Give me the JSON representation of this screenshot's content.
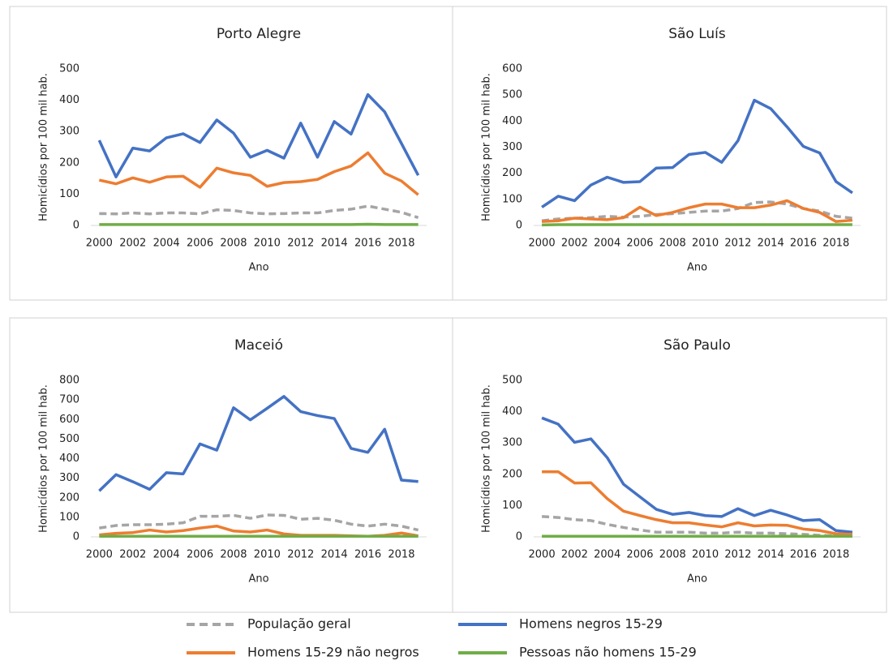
{
  "chart_data": [
    {
      "type": "line",
      "title": "Porto Alegre",
      "ylabel": "Homicídios por 100 mil hab.",
      "xlabel": "Ano",
      "x": [
        2000,
        2001,
        2002,
        2003,
        2004,
        2005,
        2006,
        2007,
        2008,
        2009,
        2010,
        2011,
        2012,
        2013,
        2014,
        2015,
        2016,
        2017,
        2018,
        2019
      ],
      "xlim": [
        1999.5,
        2019.5
      ],
      "xticks": [
        2000,
        2002,
        2004,
        2006,
        2008,
        2010,
        2012,
        2014,
        2016,
        2018
      ],
      "ylim": [
        0,
        500
      ],
      "yticks": [
        0,
        100,
        200,
        300,
        400,
        500
      ],
      "series": [
        {
          "name": "População geral",
          "color": "#a5a5a5",
          "dash": true,
          "values": [
            38,
            37,
            40,
            37,
            40,
            40,
            37,
            50,
            48,
            40,
            37,
            38,
            40,
            40,
            48,
            52,
            62,
            52,
            42,
            25
          ]
        },
        {
          "name": "Homens negros 15-29",
          "color": "#4472c4",
          "values": [
            272,
            155,
            247,
            238,
            280,
            293,
            265,
            337,
            295,
            218,
            240,
            215,
            327,
            218,
            332,
            292,
            418,
            363,
            262,
            160
          ]
        },
        {
          "name": "Homens 15-29 não negros",
          "color": "#ed7d31",
          "values": [
            145,
            133,
            152,
            138,
            155,
            157,
            122,
            183,
            168,
            160,
            125,
            137,
            140,
            147,
            172,
            190,
            232,
            167,
            142,
            98
          ]
        },
        {
          "name": "Pessoas não homens 15-29",
          "color": "#70ad47",
          "values": [
            3,
            3,
            3,
            3,
            3,
            3,
            3,
            3,
            3,
            3,
            3,
            3,
            3,
            3,
            3,
            3,
            4,
            3,
            3,
            3
          ]
        }
      ]
    },
    {
      "type": "line",
      "title": "São Luís",
      "ylabel": "Homicídios por 100 mil hab.",
      "xlabel": "Ano",
      "x": [
        2000,
        2001,
        2002,
        2003,
        2004,
        2005,
        2006,
        2007,
        2008,
        2009,
        2010,
        2011,
        2012,
        2013,
        2014,
        2015,
        2016,
        2017,
        2018,
        2019
      ],
      "xlim": [
        1999.5,
        2019.5
      ],
      "xticks": [
        2000,
        2002,
        2004,
        2006,
        2008,
        2010,
        2012,
        2014,
        2016,
        2018
      ],
      "ylim": [
        0,
        600
      ],
      "yticks": [
        0,
        100,
        200,
        300,
        400,
        500,
        600
      ],
      "series": [
        {
          "color": "#a5a5a5",
          "dash": true,
          "values": [
            18,
            25,
            28,
            30,
            35,
            32,
            35,
            42,
            45,
            50,
            55,
            55,
            65,
            88,
            90,
            82,
            65,
            55,
            35,
            28
          ]
        },
        {
          "color": "#4472c4",
          "values": [
            70,
            112,
            95,
            155,
            185,
            165,
            168,
            220,
            222,
            272,
            280,
            242,
            325,
            480,
            448,
            378,
            303,
            278,
            168,
            125
          ]
        },
        {
          "color": "#ed7d31",
          "values": [
            15,
            18,
            28,
            25,
            22,
            30,
            70,
            38,
            50,
            68,
            82,
            82,
            68,
            68,
            78,
            95,
            65,
            50,
            15,
            20
          ]
        },
        {
          "color": "#70ad47",
          "values": [
            2,
            3,
            3,
            3,
            3,
            3,
            3,
            3,
            3,
            3,
            3,
            3,
            3,
            3,
            3,
            3,
            3,
            3,
            3,
            3
          ]
        }
      ]
    },
    {
      "type": "line",
      "title": "Maceió",
      "ylabel": "Homicídios por 100 mil hab.",
      "xlabel": "Ano",
      "x": [
        2000,
        2001,
        2002,
        2003,
        2004,
        2005,
        2006,
        2007,
        2008,
        2009,
        2010,
        2011,
        2012,
        2013,
        2014,
        2015,
        2016,
        2017,
        2018,
        2019
      ],
      "xlim": [
        1999.5,
        2019.5
      ],
      "xticks": [
        2000,
        2002,
        2004,
        2006,
        2008,
        2010,
        2012,
        2014,
        2016,
        2018
      ],
      "ylim": [
        0,
        800
      ],
      "yticks": [
        0,
        100,
        200,
        300,
        400,
        500,
        600,
        700,
        800
      ],
      "series": [
        {
          "color": "#a5a5a5",
          "dash": true,
          "values": [
            45,
            58,
            62,
            62,
            65,
            72,
            105,
            105,
            110,
            95,
            112,
            110,
            90,
            95,
            85,
            65,
            55,
            65,
            55,
            35
          ]
        },
        {
          "color": "#4472c4",
          "values": [
            235,
            318,
            282,
            243,
            328,
            322,
            475,
            443,
            660,
            598,
            657,
            718,
            640,
            620,
            605,
            452,
            432,
            550,
            290,
            283
          ]
        },
        {
          "color": "#ed7d31",
          "values": [
            10,
            18,
            22,
            35,
            25,
            32,
            45,
            55,
            30,
            25,
            35,
            15,
            8,
            8,
            8,
            5,
            3,
            8,
            20,
            5
          ]
        },
        {
          "color": "#70ad47",
          "values": [
            3,
            3,
            3,
            3,
            3,
            3,
            3,
            3,
            3,
            3,
            3,
            3,
            3,
            3,
            3,
            3,
            3,
            3,
            3,
            3
          ]
        }
      ]
    },
    {
      "type": "line",
      "title": "São Paulo",
      "ylabel": "Homicídios por 100 mil hab.",
      "xlabel": "Ano",
      "x": [
        2000,
        2001,
        2002,
        2003,
        2004,
        2005,
        2006,
        2007,
        2008,
        2009,
        2010,
        2011,
        2012,
        2013,
        2014,
        2015,
        2016,
        2017,
        2018,
        2019
      ],
      "xlim": [
        1999.5,
        2019.5
      ],
      "xticks": [
        2000,
        2002,
        2004,
        2006,
        2008,
        2010,
        2012,
        2014,
        2016,
        2018
      ],
      "ylim": [
        0,
        500
      ],
      "yticks": [
        0,
        100,
        200,
        300,
        400,
        500
      ],
      "series": [
        {
          "color": "#a5a5a5",
          "dash": true,
          "values": [
            65,
            62,
            55,
            52,
            40,
            30,
            22,
            15,
            15,
            15,
            12,
            12,
            15,
            12,
            12,
            10,
            8,
            5,
            3,
            3
          ]
        },
        {
          "color": "#4472c4",
          "values": [
            380,
            360,
            302,
            313,
            253,
            168,
            128,
            88,
            72,
            78,
            68,
            65,
            90,
            68,
            85,
            70,
            52,
            55,
            20,
            15
          ]
        },
        {
          "color": "#ed7d31",
          "values": [
            208,
            208,
            172,
            173,
            122,
            82,
            68,
            55,
            45,
            45,
            38,
            32,
            45,
            35,
            38,
            37,
            25,
            20,
            10,
            8
          ]
        },
        {
          "color": "#70ad47",
          "values": [
            2,
            2,
            2,
            2,
            2,
            2,
            2,
            2,
            2,
            2,
            2,
            2,
            2,
            2,
            2,
            2,
            2,
            2,
            2,
            2
          ]
        }
      ]
    }
  ]
}
